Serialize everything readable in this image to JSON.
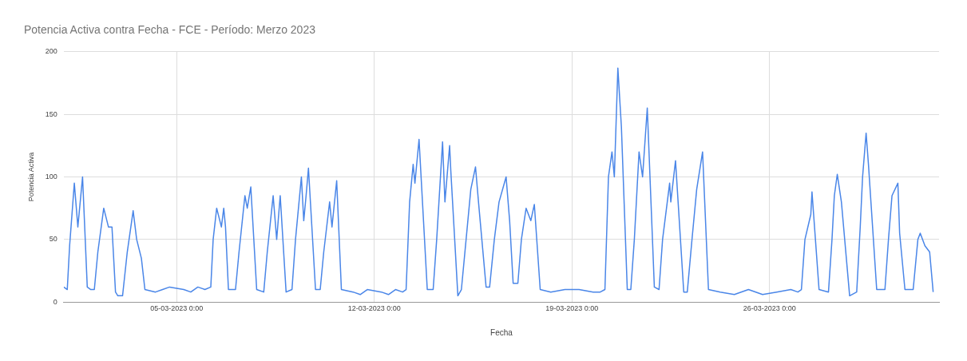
{
  "chart_data": {
    "type": "line",
    "title": "Potencia Activa contra Fecha - FCE - Período: Merzo 2023",
    "xlabel": "Fecha",
    "ylabel": "Potencia Activa",
    "legend": false,
    "grid": true,
    "marker": "none",
    "line_style": "solid",
    "xlim": [
      "2023-03-01T00:00",
      "2023-04-01T00:00"
    ],
    "xticks": [
      {
        "value": "2023-03-05T00:00",
        "label": "05-03-2023 0:00"
      },
      {
        "value": "2023-03-12T00:00",
        "label": "12-03-2023 0:00"
      },
      {
        "value": "2023-03-19T00:00",
        "label": "19-03-2023 0:00"
      },
      {
        "value": "2023-03-26T00:00",
        "label": "26-03-2023 0:00"
      }
    ],
    "ylim": [
      0,
      200
    ],
    "yticks": [
      0,
      50,
      100,
      150,
      200
    ],
    "series": [
      {
        "color": "#4a86e8",
        "x": [
          "2023-03-01T00:00",
          "2023-03-01T03:00",
          "2023-03-01T05:00",
          "2023-03-01T09:00",
          "2023-03-01T12:00",
          "2023-03-01T16:00",
          "2023-03-01T20:00",
          "2023-03-01T23:00",
          "2023-03-02T02:00",
          "2023-03-02T05:00",
          "2023-03-02T10:00",
          "2023-03-02T14:00",
          "2023-03-02T17:00",
          "2023-03-02T20:00",
          "2023-03-02T22:00",
          "2023-03-03T02:00",
          "2023-03-03T06:00",
          "2023-03-03T11:00",
          "2023-03-03T14:00",
          "2023-03-03T18:00",
          "2023-03-03T21:00",
          "2023-03-04T06:00",
          "2023-03-04T12:00",
          "2023-03-04T18:00",
          "2023-03-05T06:00",
          "2023-03-05T12:00",
          "2023-03-05T18:00",
          "2023-03-06T00:00",
          "2023-03-06T05:00",
          "2023-03-06T07:00",
          "2023-03-06T10:00",
          "2023-03-06T14:00",
          "2023-03-06T16:00",
          "2023-03-06T17:30",
          "2023-03-06T20:00",
          "2023-03-07T02:00",
          "2023-03-07T05:00",
          "2023-03-07T10:00",
          "2023-03-07T12:00",
          "2023-03-07T15:00",
          "2023-03-07T20:00",
          "2023-03-08T02:00",
          "2023-03-08T05:00",
          "2023-03-08T10:00",
          "2023-03-08T13:00",
          "2023-03-08T16:00",
          "2023-03-08T21:00",
          "2023-03-09T02:00",
          "2023-03-09T05:00",
          "2023-03-09T10:00",
          "2023-03-09T12:00",
          "2023-03-09T14:00",
          "2023-03-09T16:00",
          "2023-03-09T22:00",
          "2023-03-10T02:00",
          "2023-03-10T05:00",
          "2023-03-10T10:00",
          "2023-03-10T12:00",
          "2023-03-10T16:00",
          "2023-03-10T20:00",
          "2023-03-11T06:00",
          "2023-03-11T12:00",
          "2023-03-11T18:00",
          "2023-03-12T06:00",
          "2023-03-12T12:00",
          "2023-03-12T18:00",
          "2023-03-13T00:00",
          "2023-03-13T03:00",
          "2023-03-13T06:00",
          "2023-03-13T09:00",
          "2023-03-13T10:30",
          "2023-03-13T14:00",
          "2023-03-13T21:00",
          "2023-03-14T02:00",
          "2023-03-14T05:00",
          "2023-03-14T10:00",
          "2023-03-14T12:00",
          "2023-03-14T16:00",
          "2023-03-14T17:00",
          "2023-03-14T23:00",
          "2023-03-15T02:00",
          "2023-03-15T06:00",
          "2023-03-15T10:00",
          "2023-03-15T14:00",
          "2023-03-15T17:00",
          "2023-03-15T23:00",
          "2023-03-16T02:00",
          "2023-03-16T06:00",
          "2023-03-16T10:00",
          "2023-03-16T16:00",
          "2023-03-16T19:00",
          "2023-03-16T22:00",
          "2023-03-17T02:00",
          "2023-03-17T05:00",
          "2023-03-17T09:00",
          "2023-03-17T13:00",
          "2023-03-17T16:00",
          "2023-03-17T21:00",
          "2023-03-18T06:00",
          "2023-03-18T18:00",
          "2023-03-19T06:00",
          "2023-03-19T18:00",
          "2023-03-20T00:00",
          "2023-03-20T04:00",
          "2023-03-20T07:00",
          "2023-03-20T10:00",
          "2023-03-20T12:00",
          "2023-03-20T15:00",
          "2023-03-20T18:00",
          "2023-03-20T23:00",
          "2023-03-21T02:00",
          "2023-03-21T05:00",
          "2023-03-21T09:00",
          "2023-03-21T12:00",
          "2023-03-21T16:00",
          "2023-03-21T22:00",
          "2023-03-22T02:00",
          "2023-03-22T05:00",
          "2023-03-22T11:00",
          "2023-03-22T12:00",
          "2023-03-22T16:00",
          "2023-03-22T23:00",
          "2023-03-23T02:00",
          "2023-03-23T06:00",
          "2023-03-23T10:00",
          "2023-03-23T15:00",
          "2023-03-23T20:00",
          "2023-03-24T06:00",
          "2023-03-24T18:00",
          "2023-03-25T06:00",
          "2023-03-25T18:00",
          "2023-03-26T06:00",
          "2023-03-26T18:00",
          "2023-03-27T00:00",
          "2023-03-27T03:00",
          "2023-03-27T06:00",
          "2023-03-27T11:00",
          "2023-03-27T12:00",
          "2023-03-27T18:00",
          "2023-03-28T02:00",
          "2023-03-28T05:00",
          "2023-03-28T07:00",
          "2023-03-28T09:30",
          "2023-03-28T13:00",
          "2023-03-28T20:00",
          "2023-03-29T02:00",
          "2023-03-29T05:00",
          "2023-03-29T07:00",
          "2023-03-29T10:00",
          "2023-03-29T12:00",
          "2023-03-29T19:00",
          "2023-03-30T02:00",
          "2023-03-30T05:00",
          "2023-03-30T08:00",
          "2023-03-30T13:00",
          "2023-03-30T14:30",
          "2023-03-30T19:00",
          "2023-03-31T02:00",
          "2023-03-31T06:00",
          "2023-03-31T08:00",
          "2023-03-31T12:00",
          "2023-03-31T16:00",
          "2023-03-31T19:00"
        ],
        "values": [
          12,
          10,
          45,
          95,
          60,
          100,
          12,
          10,
          10,
          40,
          75,
          60,
          60,
          8,
          5,
          5,
          40,
          73,
          50,
          35,
          10,
          8,
          10,
          12,
          10,
          8,
          12,
          10,
          12,
          50,
          75,
          60,
          75,
          60,
          10,
          10,
          40,
          85,
          75,
          92,
          10,
          8,
          40,
          85,
          50,
          85,
          8,
          10,
          50,
          100,
          65,
          85,
          107,
          10,
          10,
          40,
          80,
          60,
          97,
          10,
          8,
          6,
          10,
          8,
          6,
          10,
          8,
          10,
          80,
          110,
          95,
          130,
          10,
          10,
          50,
          128,
          80,
          125,
          105,
          5,
          10,
          50,
          90,
          108,
          75,
          12,
          12,
          50,
          80,
          100,
          65,
          15,
          15,
          50,
          75,
          65,
          78,
          10,
          8,
          10,
          10,
          8,
          8,
          10,
          100,
          120,
          100,
          187,
          140,
          10,
          10,
          50,
          120,
          100,
          155,
          12,
          10,
          50,
          95,
          80,
          113,
          8,
          8,
          50,
          90,
          120,
          10,
          8,
          6,
          10,
          6,
          8,
          10,
          8,
          10,
          50,
          70,
          88,
          10,
          8,
          50,
          85,
          102,
          80,
          5,
          8,
          60,
          100,
          135,
          110,
          10,
          10,
          50,
          85,
          95,
          55,
          10,
          10,
          50,
          55,
          45,
          40,
          8
        ]
      }
    ]
  }
}
